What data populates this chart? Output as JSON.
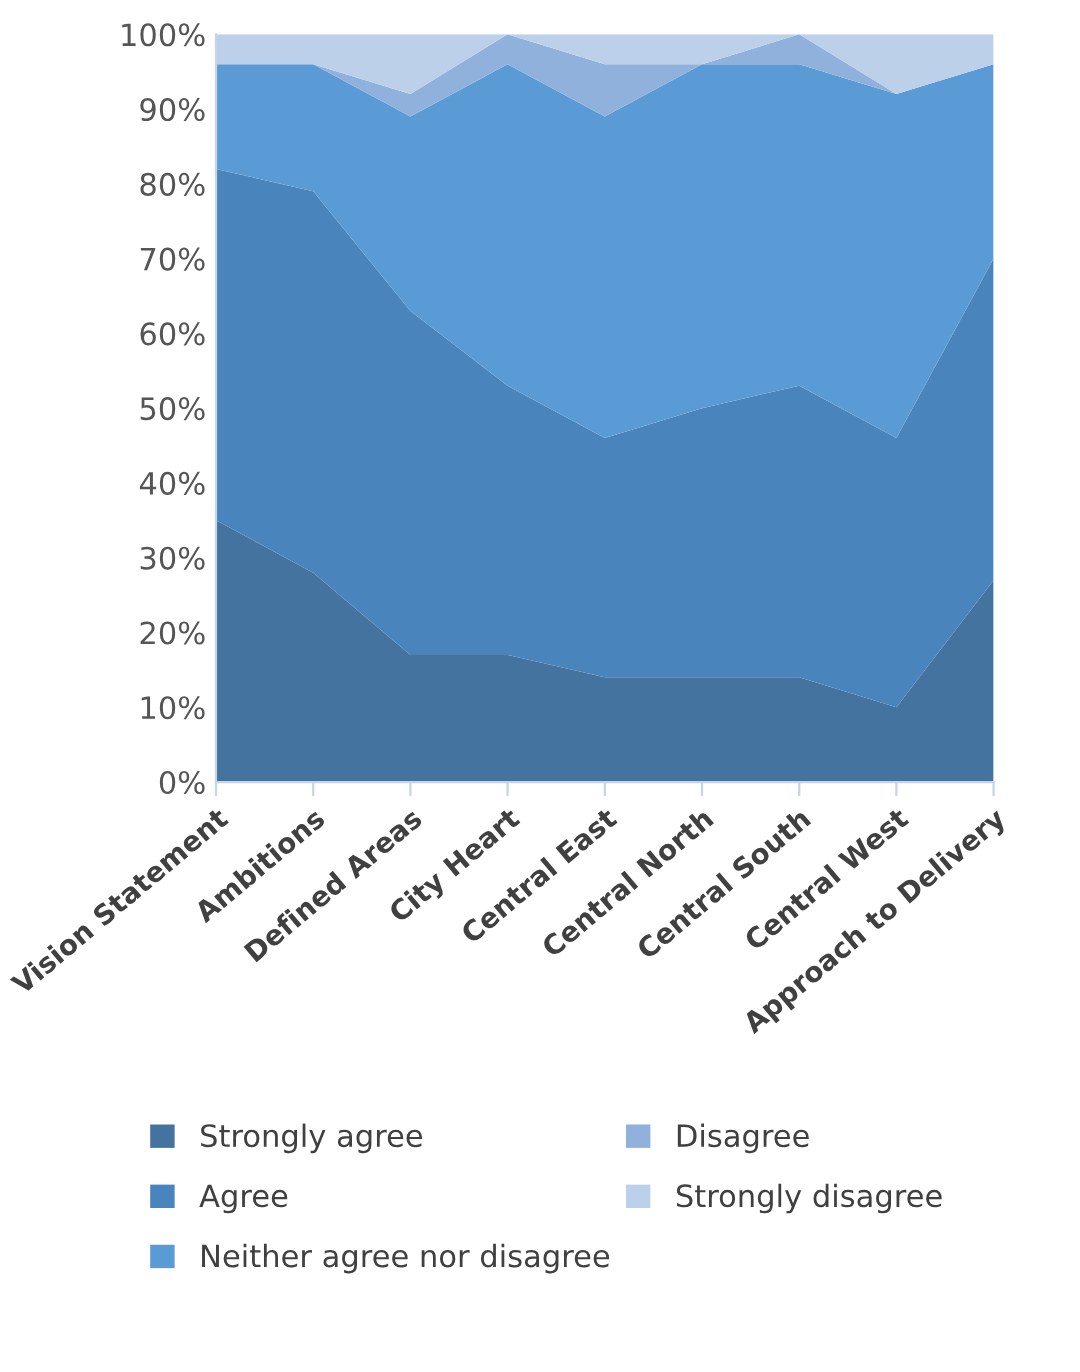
{
  "chart_data": {
    "type": "area",
    "stacked": true,
    "categories": [
      "Vision Statement",
      "Ambitions",
      "Defined Areas",
      "City Heart",
      "Central East",
      "Central North",
      "Central South",
      "Central West",
      "Approach to Delivery"
    ],
    "series": [
      {
        "name": "Strongly agree",
        "color": "#44739f",
        "values": [
          35,
          28,
          17,
          17,
          14,
          14,
          14,
          10,
          27
        ]
      },
      {
        "name": "Agree",
        "color": "#4a84bc",
        "values": [
          47,
          51,
          46,
          36,
          32,
          36,
          39,
          36,
          43
        ]
      },
      {
        "name": "Neither agree nor disagree",
        "color": "#5b9bd5",
        "values": [
          14,
          17,
          26,
          43,
          43,
          46,
          43,
          46,
          26
        ]
      },
      {
        "name": "Disagree",
        "color": "#8fb1db",
        "values": [
          0,
          0,
          3,
          4,
          7,
          0,
          4,
          0,
          0
        ]
      },
      {
        "name": "Strongly disagree",
        "color": "#bdd0ea",
        "values": [
          4,
          4,
          8,
          0,
          4,
          4,
          0,
          8,
          4
        ]
      }
    ],
    "ylim": [
      0,
      100
    ],
    "yticks": [
      {
        "value": 0,
        "label": "0%"
      },
      {
        "value": 10,
        "label": "10%"
      },
      {
        "value": 20,
        "label": "20%"
      },
      {
        "value": 30,
        "label": "30%"
      },
      {
        "value": 40,
        "label": "40%"
      },
      {
        "value": 50,
        "label": "50%"
      },
      {
        "value": 60,
        "label": "60%"
      },
      {
        "value": 70,
        "label": "70%"
      },
      {
        "value": 80,
        "label": "80%"
      },
      {
        "value": 90,
        "label": "90%"
      },
      {
        "value": 100,
        "label": "100%"
      }
    ],
    "grid": false,
    "legend": "bottom"
  }
}
